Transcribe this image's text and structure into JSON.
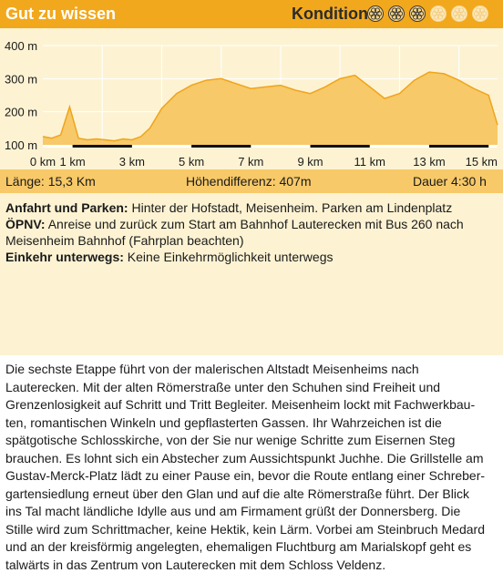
{
  "header": {
    "title": "Gut zu wissen",
    "kondition_label": "Kondition",
    "difficulty": {
      "filled": 3,
      "total": 6
    }
  },
  "colors": {
    "header_bg": "#f2a81d",
    "panel_bg": "#fdf3d3",
    "stats_bg": "#f7c968",
    "profile_fill": "#f7c968",
    "profile_stroke": "#f0a41a",
    "icon_filled": "#f9d47f",
    "icon_empty": "#fbe9be"
  },
  "chart_data": {
    "type": "area",
    "x": [
      0,
      0.3,
      0.6,
      0.9,
      1.2,
      1.5,
      1.8,
      2.1,
      2.4,
      2.7,
      3.0,
      3.3,
      3.6,
      4.0,
      4.5,
      5.0,
      5.5,
      6.0,
      6.5,
      7.0,
      7.5,
      8.0,
      8.5,
      9.0,
      9.5,
      10.0,
      10.5,
      11.0,
      11.5,
      12.0,
      12.5,
      13.0,
      13.5,
      14.0,
      14.5,
      15.0,
      15.3
    ],
    "y": [
      125,
      120,
      130,
      215,
      120,
      115,
      118,
      115,
      112,
      118,
      115,
      125,
      150,
      210,
      255,
      280,
      295,
      300,
      285,
      270,
      275,
      280,
      265,
      255,
      275,
      300,
      310,
      275,
      240,
      255,
      295,
      320,
      315,
      295,
      270,
      250,
      160
    ],
    "xlim": [
      0,
      15.3
    ],
    "ylim": [
      100,
      400
    ],
    "yticks": [
      100,
      200,
      300,
      400
    ],
    "ytick_labels": [
      "100 m",
      "200 m",
      "300 m",
      "400 m"
    ],
    "xticks": [
      0,
      1,
      3,
      5,
      7,
      9,
      11,
      13,
      15
    ],
    "xtick_labels": [
      "0 km",
      "1 km",
      "3 km",
      "5 km",
      "7 km",
      "9 km",
      "11 km",
      "13 km",
      "15 km"
    ],
    "grid": true
  },
  "stats": {
    "length": "Länge: 15,3 Km",
    "elevation": "Höhendifferenz: 407m",
    "duration": "Dauer 4:30 h"
  },
  "info": {
    "anfahrt_label": "Anfahrt und Parken:",
    "anfahrt_text": " Hinter der Hofstadt, Meisenheim. Parken am Lindenplatz",
    "oepnv_label": "ÖPNV:",
    "oepnv_text_1": " Anreise und zurück zum Start am Bahnhof Lauterecken mit Bus 260 nach",
    "oepnv_text_2": "Meisenheim Bahnhof (Fahrplan beachten)",
    "einkehr_label": "Einkehr unterwegs:",
    "einkehr_text": " Keine Einkehrmöglichkeit unterwegs"
  },
  "description": [
    "Die sechste Etappe führt von der malerischen Altstadt Meisenheims nach",
    "Lauterecken. Mit der alten Römerstraße unter den Schuhen sind Freiheit und",
    "Grenzenlosigkeit auf Schritt und Tritt Begleiter. Meisenheim lockt mit Fachwerkbau-",
    "ten, romantischen Winkeln und gepflasterten Gassen. Ihr Wahrzeichen ist die",
    "spätgotische Schlosskirche, von der Sie nur wenige Schritte zum Eisernen Steg",
    "brauchen. Es lohnt sich ein Abstecher zum Aussichtspunkt Juchhe. Die Grillstelle am",
    "Gustav-Merck-Platz lädt zu einer Pause ein, bevor die Route entlang einer Schreber-",
    "gartensiedlung erneut über den Glan und auf die alte Römerstraße führt. Der Blick",
    "ins Tal macht ländliche Idylle aus und am Firmament grüßt der Donnersberg. Die",
    "Stille wird zum Schrittmacher, keine Hektik, kein Lärm. Vorbei am Steinbruch Medard",
    "und an der kreisförmig angelegten, ehemaligen Fluchtburg am Marialskopf geht es",
    "talwärts in das Zentrum von Lauterecken mit dem Schloss Veldenz."
  ]
}
